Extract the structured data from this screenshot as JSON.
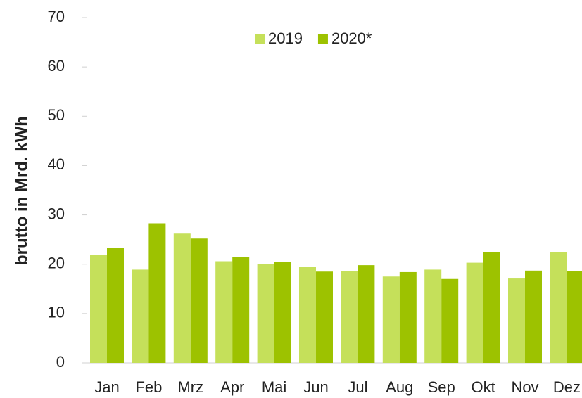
{
  "chart_data": {
    "type": "bar",
    "y_label": "brutto in  Mrd. kWh",
    "categories": [
      "Jan",
      "Feb",
      "Mrz",
      "Apr",
      "Mai",
      "Jun",
      "Jul",
      "Aug",
      "Sep",
      "Okt",
      "Nov",
      "Dez"
    ],
    "series": [
      {
        "name": "2019",
        "color": "#c5e05a",
        "values": [
          21.9,
          18.9,
          26.2,
          20.6,
          20.0,
          19.5,
          18.6,
          17.5,
          18.9,
          20.3,
          17.1,
          22.5
        ]
      },
      {
        "name": "2020*",
        "color": "#9dc200",
        "values": [
          23.3,
          28.3,
          25.2,
          21.4,
          20.4,
          18.5,
          19.8,
          18.4,
          17.0,
          22.4,
          18.7,
          18.6
        ]
      }
    ],
    "ylim": [
      0,
      70
    ],
    "yticks": [
      0,
      10,
      20,
      30,
      40,
      50,
      60,
      70
    ],
    "legend": "top"
  }
}
